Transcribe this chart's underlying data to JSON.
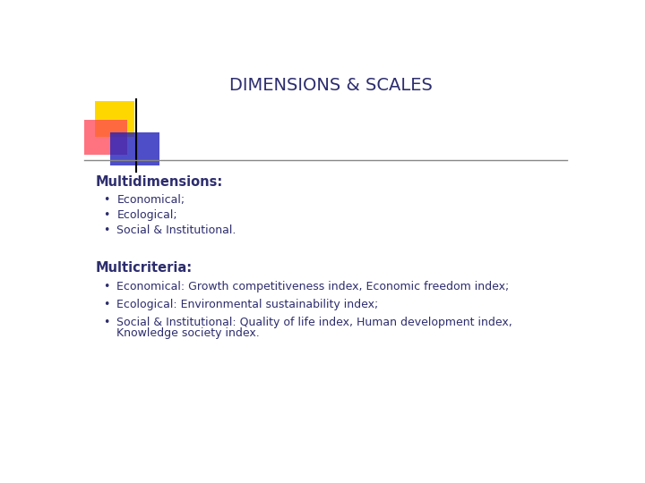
{
  "title": "DIMENSIONS & SCALES",
  "title_color": "#2d2d6e",
  "title_fontsize": 14,
  "background_color": "#ffffff",
  "text_color": "#2d2d6e",
  "multidimensions_label": "Multidimensions:",
  "multidimensions_items": [
    "Economical;",
    "Ecological;",
    "Social & Institutional."
  ],
  "multicriteria_label": "Multicriteria:",
  "multicriteria_items": [
    "Economical: Growth competitiveness index, Economic freedom index;",
    "Ecological: Environmental sustainability index;",
    "Social & Institutional: Quality of life index, Human development index,\nKnowledge society index."
  ],
  "yellow_color": "#FFD700",
  "red_color": "#FF4455",
  "blue_color": "#2222BB",
  "line_color": "#888888"
}
